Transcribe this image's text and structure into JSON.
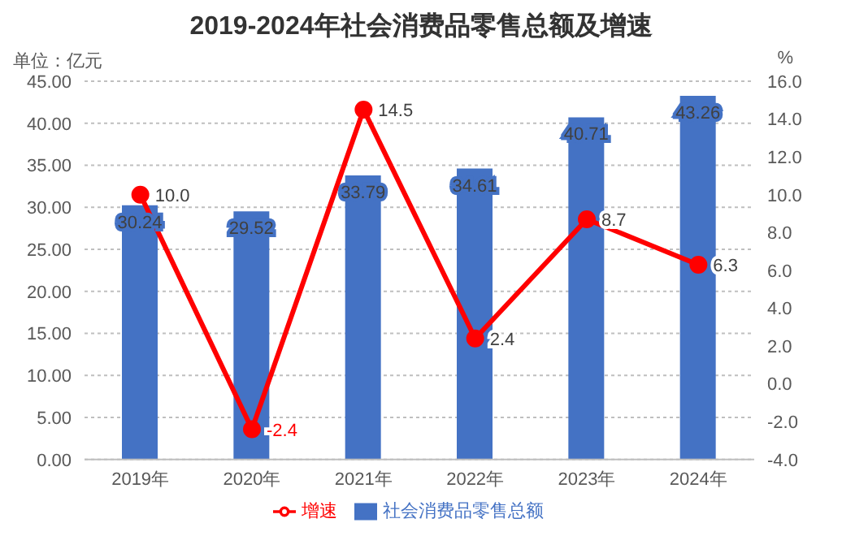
{
  "chart_data": {
    "type": "bar",
    "title": "2019-2024年社会消费品零售总额及增速",
    "ylabel": "单位：亿元",
    "y2label": "%",
    "categories": [
      "2019年",
      "2020年",
      "2021年",
      "2022年",
      "2023年",
      "2024年"
    ],
    "series": [
      {
        "name": "社会消费品零售总额",
        "color": "#4472c4",
        "values": [
          30.24,
          29.52,
          33.79,
          34.61,
          40.71,
          43.26
        ],
        "value_labels": [
          "30.24",
          "29.52",
          "33.79",
          "34.61",
          "40.71",
          "43.26"
        ]
      },
      {
        "name": "增速",
        "type": "line",
        "axis": "y2",
        "color": "#ff0000",
        "values": [
          10.0,
          -2.4,
          14.5,
          2.4,
          8.7,
          6.3
        ],
        "value_labels": [
          "10.0",
          "-2.4",
          "14.5",
          "2.4",
          "8.7",
          "6.3"
        ]
      }
    ],
    "ylim": [
      0,
      45
    ],
    "yticks": [
      {
        "value": 0,
        "label": "0.00"
      },
      {
        "value": 5,
        "label": "5.00"
      },
      {
        "value": 10,
        "label": "10.00"
      },
      {
        "value": 15,
        "label": "15.00"
      },
      {
        "value": 20,
        "label": "20.00"
      },
      {
        "value": 25,
        "label": "25.00"
      },
      {
        "value": 30,
        "label": "30.00"
      },
      {
        "value": 35,
        "label": "35.00"
      },
      {
        "value": 40,
        "label": "40.00"
      },
      {
        "value": 45,
        "label": "45.00"
      }
    ],
    "y2lim": [
      -4,
      16
    ],
    "y2ticks": [
      {
        "value": -4,
        "label": "-4.0"
      },
      {
        "value": -2,
        "label": "-2.0"
      },
      {
        "value": 0,
        "label": "0.0"
      },
      {
        "value": 2,
        "label": "2.0"
      },
      {
        "value": 4,
        "label": "4.0"
      },
      {
        "value": 6,
        "label": "6.0"
      },
      {
        "value": 8,
        "label": "8.0"
      },
      {
        "value": 10,
        "label": "10.0"
      },
      {
        "value": 12,
        "label": "12.0"
      },
      {
        "value": 14,
        "label": "14.0"
      },
      {
        "value": 16,
        "label": "16.0"
      }
    ],
    "grid": "y",
    "legend": "bottom",
    "marker": "circle",
    "line_style": "solid"
  }
}
